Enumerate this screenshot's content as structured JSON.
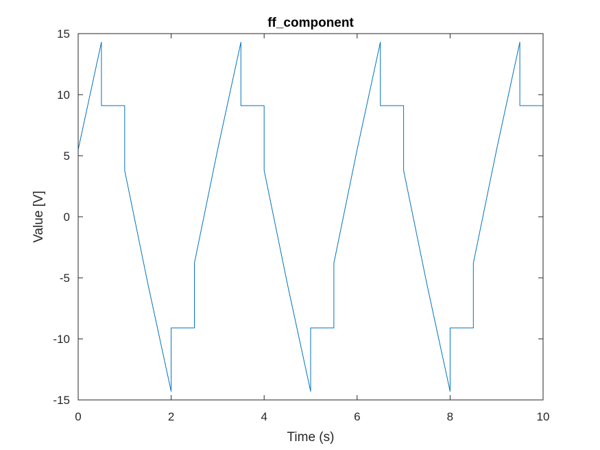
{
  "chart_data": {
    "type": "line",
    "title": "ff_component",
    "xlabel": "Time (s)",
    "ylabel": "Value [V]",
    "xlim": [
      0,
      10
    ],
    "ylim": [
      -15,
      15
    ],
    "xticks": [
      0,
      2,
      4,
      6,
      8,
      10
    ],
    "yticks": [
      -15,
      -10,
      -5,
      0,
      5,
      10,
      15
    ],
    "xtick_labels": [
      "0",
      "2",
      "4",
      "6",
      "8",
      "10"
    ],
    "ytick_labels": [
      "-15",
      "-10",
      "-5",
      "0",
      "5",
      "10",
      "15"
    ],
    "grid": false,
    "series": [
      {
        "color": "#0072BD",
        "x": [
          0,
          0.5,
          0.5,
          1.0,
          1.0,
          1.5,
          2.0,
          2.0,
          2.5,
          2.5,
          3.0,
          3.5,
          3.5,
          4.0,
          4.0,
          4.5,
          5.0,
          5.0,
          5.5,
          5.5,
          6.0,
          6.5,
          6.5,
          7.0,
          7.0,
          7.5,
          8.0,
          8.0,
          8.5,
          8.5,
          9.0,
          9.5,
          9.5,
          10.0,
          10.0
        ],
        "y": [
          5.5,
          14.3,
          9.1,
          9.1,
          3.8,
          -5.5,
          -14.3,
          -9.1,
          -9.1,
          -3.8,
          5.5,
          14.3,
          9.1,
          9.1,
          3.8,
          -5.5,
          -14.3,
          -9.1,
          -9.1,
          -3.8,
          5.5,
          14.3,
          9.1,
          9.1,
          3.8,
          -5.5,
          -14.3,
          -9.1,
          -9.1,
          -3.8,
          5.5,
          14.3,
          9.1,
          9.1,
          3.8
        ]
      }
    ]
  }
}
